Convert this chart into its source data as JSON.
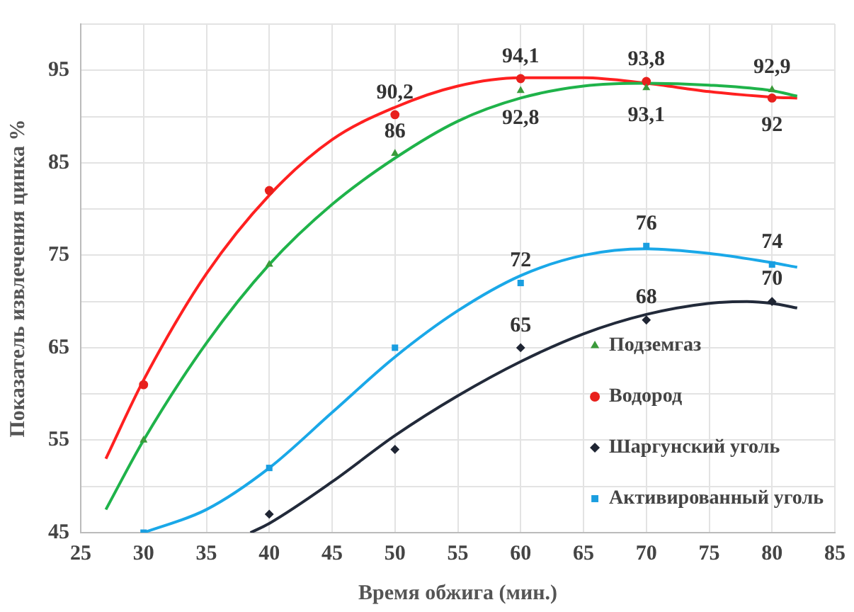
{
  "chart_data": {
    "type": "scatter",
    "xlabel": "Время обжига (мин.)",
    "ylabel": "Показатель извлечения цинка %",
    "xlim": [
      25,
      85
    ],
    "xticks": [
      25,
      30,
      35,
      40,
      45,
      50,
      55,
      60,
      65,
      70,
      75,
      80,
      85
    ],
    "ylim": [
      45,
      100
    ],
    "yticks": [
      45,
      {
        "value": 50,
        "label": null
      },
      55,
      {
        "value": 60,
        "label": null
      },
      65,
      {
        "value": 70,
        "label": null
      },
      75,
      {
        "value": 80,
        "label": null
      },
      85,
      {
        "value": 90,
        "label": null
      },
      95,
      {
        "value": 100,
        "label": null
      }
    ],
    "grid": true,
    "legend": "right",
    "series": [
      {
        "name": "Подземгаз",
        "marker": "triangle",
        "color": "#3a9a3a",
        "x": [
          30,
          40,
          50,
          60,
          70,
          80
        ],
        "values": [
          55,
          74,
          86,
          92.8,
          93.1,
          92.9
        ],
        "value_labels": [
          null,
          null,
          "86",
          "92,8",
          "93,1",
          "92,9"
        ]
      },
      {
        "name": "Водород",
        "marker": "circle",
        "color": "#e8201c",
        "x": [
          30,
          40,
          50,
          60,
          70,
          80
        ],
        "values": [
          61,
          82,
          90.2,
          94.1,
          93.8,
          92
        ],
        "value_labels": [
          null,
          null,
          "90,2",
          "94,1",
          "93,8",
          "92"
        ]
      },
      {
        "name": "Шаргунский уголь",
        "marker": "diamond",
        "color": "#1f2533",
        "x": [
          40,
          50,
          60,
          70,
          80
        ],
        "values": [
          47,
          54,
          65,
          68,
          70
        ],
        "value_labels": [
          null,
          null,
          "65",
          "68",
          "70"
        ]
      },
      {
        "name": "Активированный уголь",
        "marker": "square",
        "color": "#1a9ee0",
        "x": [
          30,
          40,
          50,
          60,
          70,
          80
        ],
        "values": [
          45,
          52,
          65,
          72,
          76,
          74
        ],
        "value_labels": [
          null,
          null,
          null,
          "72",
          "76",
          "74"
        ]
      },
      {
        "type": "line",
        "marker": "none",
        "color": "#1fb34a",
        "x": [
          27,
          30,
          35,
          40,
          45,
          50,
          55,
          60,
          65,
          70,
          75,
          80,
          82
        ],
        "values": [
          47.5,
          55,
          65.5,
          74,
          80.5,
          85.5,
          89.5,
          92,
          93.3,
          93.6,
          93.4,
          92.8,
          92.2
        ]
      },
      {
        "type": "line",
        "marker": "none",
        "color": "#ff2020",
        "x": [
          27,
          30,
          35,
          40,
          45,
          50,
          55,
          60,
          65,
          70,
          75,
          80,
          82
        ],
        "values": [
          53,
          61.5,
          73,
          81.5,
          87.5,
          91,
          93.3,
          94.2,
          94.2,
          93.6,
          92.7,
          92.1,
          92
        ]
      },
      {
        "type": "line",
        "marker": "none",
        "color": "#1aa8e8",
        "x": [
          30,
          35,
          40,
          45,
          50,
          55,
          60,
          65,
          70,
          75,
          80,
          82
        ],
        "values": [
          45,
          47.5,
          52,
          58,
          64,
          69,
          72.8,
          75,
          75.7,
          75.2,
          74.2,
          73.7
        ]
      },
      {
        "type": "line",
        "marker": "none",
        "color": "#222a3a",
        "x": [
          38.5,
          40,
          45,
          50,
          55,
          60,
          65,
          70,
          75,
          78,
          80,
          82
        ],
        "values": [
          45,
          46,
          50.5,
          55.5,
          59.8,
          63.5,
          66.5,
          68.6,
          69.8,
          70,
          69.8,
          69.3
        ]
      }
    ]
  }
}
